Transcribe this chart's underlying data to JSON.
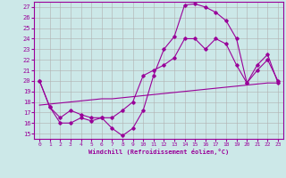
{
  "xlabel": "Windchill (Refroidissement éolien,°C)",
  "ylabel": "",
  "xlim": [
    -0.5,
    23.5
  ],
  "ylim": [
    14.5,
    27.5
  ],
  "xticks": [
    0,
    1,
    2,
    3,
    4,
    5,
    6,
    7,
    8,
    9,
    10,
    11,
    12,
    13,
    14,
    15,
    16,
    17,
    18,
    19,
    20,
    21,
    22,
    23
  ],
  "yticks": [
    15,
    16,
    17,
    18,
    19,
    20,
    21,
    22,
    23,
    24,
    25,
    26,
    27
  ],
  "bg_color": "#cce8e8",
  "line_color": "#990099",
  "grid_color": "#b0b0b0",
  "line1_x": [
    0,
    1,
    2,
    3,
    4,
    5,
    6,
    7,
    8,
    9,
    10,
    11,
    12,
    13,
    14,
    15,
    16,
    17,
    18,
    19,
    20,
    21,
    22,
    23
  ],
  "line1_y": [
    20.0,
    17.5,
    16.0,
    16.0,
    16.5,
    16.2,
    16.5,
    15.5,
    14.8,
    15.5,
    17.2,
    20.5,
    23.0,
    24.2,
    27.2,
    27.3,
    27.0,
    26.5,
    25.7,
    24.0,
    19.8,
    21.0,
    22.0,
    20.0
  ],
  "line2_x": [
    0,
    1,
    2,
    3,
    4,
    5,
    6,
    7,
    8,
    9,
    10,
    11,
    12,
    13,
    14,
    15,
    16,
    17,
    18,
    19,
    20,
    21,
    22,
    23
  ],
  "line2_y": [
    20.0,
    17.5,
    16.5,
    17.2,
    16.8,
    16.5,
    16.5,
    16.5,
    17.2,
    18.0,
    20.5,
    21.0,
    21.5,
    22.2,
    24.0,
    24.0,
    23.0,
    24.0,
    23.5,
    21.5,
    19.8,
    21.5,
    22.5,
    19.8
  ],
  "line3_x": [
    0,
    1,
    2,
    3,
    4,
    5,
    6,
    7,
    8,
    9,
    10,
    11,
    12,
    13,
    14,
    15,
    16,
    17,
    18,
    19,
    20,
    21,
    22,
    23
  ],
  "line3_y": [
    17.7,
    17.8,
    17.9,
    18.0,
    18.1,
    18.2,
    18.3,
    18.3,
    18.4,
    18.5,
    18.6,
    18.7,
    18.8,
    18.9,
    19.0,
    19.1,
    19.2,
    19.3,
    19.4,
    19.5,
    19.6,
    19.7,
    19.8,
    19.8
  ]
}
